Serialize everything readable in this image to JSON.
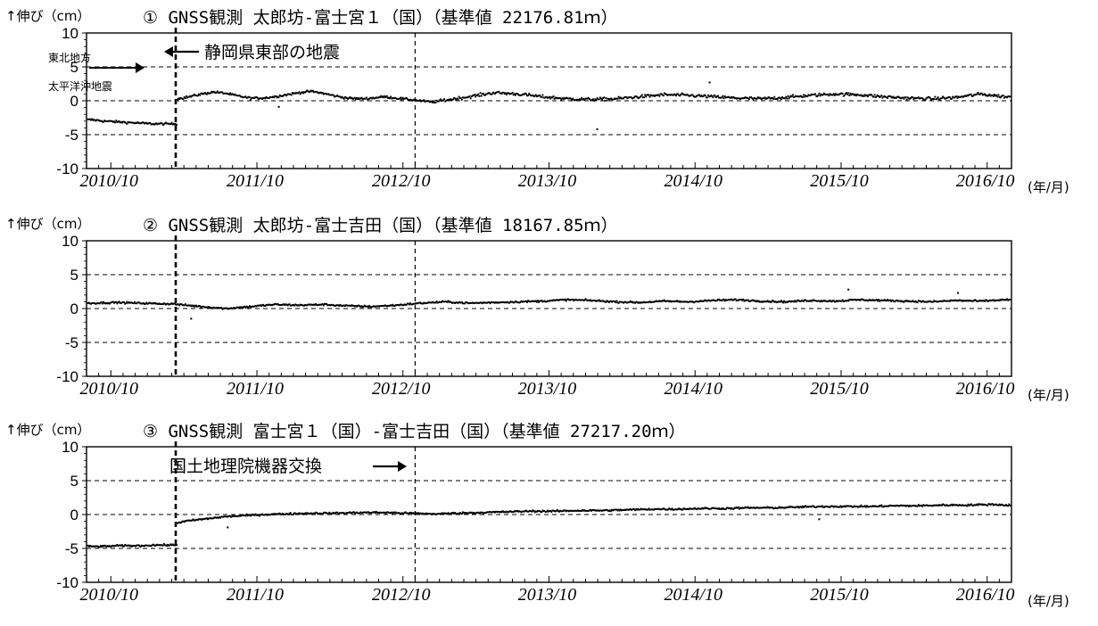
{
  "chart_data": [
    {
      "type": "scatter",
      "title": "① GNSS観測 太郎坊-富士宮１（国）（基準値 22176.81ｍ）",
      "ylabel": "↑伸び（cm）",
      "xunit": "(年/月)",
      "ylim": [
        -10,
        10
      ],
      "yticks": [
        "10",
        "5",
        "0",
        "-5",
        "-10"
      ],
      "xticks": [
        "2010/10",
        "2011/10",
        "2012/10",
        "2013/10",
        "2014/10",
        "2015/10",
        "2016/10"
      ],
      "grid": "dashed horizontal at ±5 cm and 0",
      "vlines": [
        "2011/03/11",
        "2012/11/01"
      ],
      "annotations": [
        "静岡県東部の地震",
        "東北地方",
        "太平洋沖地震"
      ],
      "series": [
        {
          "x": [
            "2010/08",
            "2010/09",
            "2010/10",
            "2010/11",
            "2010/12",
            "2011/01",
            "2011/02",
            "2011/03",
            "2011/03",
            "2011/04",
            "2011/05",
            "2011/06",
            "2011/07",
            "2011/08",
            "2011/09",
            "2011/10",
            "2011/11",
            "2011/12",
            "2012/01",
            "2012/02",
            "2012/03",
            "2012/04",
            "2012/05",
            "2012/06",
            "2012/07",
            "2012/08",
            "2012/09",
            "2012/10",
            "2012/11",
            "2012/12",
            "2013/01",
            "2013/03",
            "2013/05",
            "2013/07",
            "2013/09",
            "2013/11",
            "2014/01",
            "2014/03",
            "2014/05",
            "2014/07",
            "2014/09",
            "2014/11",
            "2015/01",
            "2015/03",
            "2015/05",
            "2015/07",
            "2015/09",
            "2015/11",
            "2016/01",
            "2016/03",
            "2016/05",
            "2016/07",
            "2016/09",
            "2016/11"
          ],
          "y": [
            -2.8,
            -3.0,
            -3.1,
            -3.2,
            -3.3,
            -3.4,
            -3.4,
            -3.4,
            0.3,
            0.6,
            1.0,
            1.3,
            1.1,
            0.7,
            0.4,
            0.4,
            0.6,
            0.9,
            1.2,
            1.4,
            1.1,
            0.7,
            0.4,
            0.3,
            0.4,
            0.6,
            0.4,
            0.2,
            0.0,
            -0.2,
            0.1,
            0.6,
            1.2,
            1.0,
            0.6,
            0.3,
            0.2,
            0.3,
            0.6,
            0.9,
            0.8,
            0.6,
            0.4,
            0.3,
            0.5,
            0.8,
            1.0,
            0.9,
            0.6,
            0.4,
            0.3,
            0.5,
            1.0,
            0.6
          ]
        }
      ]
    },
    {
      "type": "scatter",
      "title": "② GNSS観測 太郎坊-富士吉田（国）（基準値 18167.85ｍ）",
      "ylabel": "↑伸び（cm）",
      "xunit": "(年/月)",
      "ylim": [
        -10,
        10
      ],
      "yticks": [
        "10",
        "5",
        "0",
        "-5",
        "-10"
      ],
      "xticks": [
        "2010/10",
        "2011/10",
        "2012/10",
        "2013/10",
        "2014/10",
        "2015/10",
        "2016/10"
      ],
      "grid": "dashed horizontal at ±5 cm and 0",
      "vlines": [
        "2011/03/11",
        "2012/11/01"
      ],
      "series": [
        {
          "x": [
            "2010/08",
            "2010/10",
            "2010/12",
            "2011/02",
            "2011/03",
            "2011/05",
            "2011/07",
            "2011/09",
            "2011/11",
            "2012/01",
            "2012/03",
            "2012/05",
            "2012/07",
            "2012/09",
            "2012/11",
            "2013/01",
            "2013/03",
            "2013/05",
            "2013/07",
            "2013/09",
            "2013/11",
            "2014/01",
            "2014/03",
            "2014/05",
            "2014/07",
            "2014/09",
            "2014/11",
            "2015/01",
            "2015/03",
            "2015/05",
            "2015/07",
            "2015/09",
            "2015/11",
            "2016/01",
            "2016/03",
            "2016/05",
            "2016/07",
            "2016/09",
            "2016/11"
          ],
          "y": [
            0.8,
            0.9,
            0.8,
            0.7,
            0.6,
            0.3,
            0.0,
            0.3,
            0.6,
            0.5,
            0.6,
            0.4,
            0.3,
            0.5,
            0.8,
            1.0,
            0.8,
            0.9,
            1.0,
            1.1,
            1.3,
            1.2,
            1.0,
            0.9,
            1.1,
            1.0,
            1.2,
            1.3,
            1.1,
            1.0,
            1.2,
            1.1,
            1.3,
            1.2,
            1.1,
            1.0,
            1.2,
            1.1,
            1.3
          ]
        }
      ]
    },
    {
      "type": "scatter",
      "title": "③ GNSS観測 富士宮１（国）-富士吉田（国）（基準値 27217.20ｍ）",
      "ylabel": "↑伸び（cm）",
      "xunit": "(年/月)",
      "ylim": [
        -10,
        10
      ],
      "yticks": [
        "10",
        "5",
        "0",
        "-5",
        "-10"
      ],
      "xticks": [
        "2010/10",
        "2011/10",
        "2012/10",
        "2013/10",
        "2014/10",
        "2015/10",
        "2016/10"
      ],
      "grid": "dashed horizontal at ±5 cm and 0",
      "vlines": [
        "2011/03/11",
        "2012/11/01"
      ],
      "annotations": [
        "国土地理院機器交換"
      ],
      "series": [
        {
          "x": [
            "2010/08",
            "2010/09",
            "2010/10",
            "2010/11",
            "2010/12",
            "2011/01",
            "2011/02",
            "2011/03",
            "2011/03",
            "2011/04",
            "2011/05",
            "2011/06",
            "2011/07",
            "2011/08",
            "2011/10",
            "2011/12",
            "2012/02",
            "2012/04",
            "2012/06",
            "2012/08",
            "2012/10",
            "2012/12",
            "2013/02",
            "2013/04",
            "2013/06",
            "2013/08",
            "2013/10",
            "2013/12",
            "2014/02",
            "2014/04",
            "2014/06",
            "2014/08",
            "2014/10",
            "2014/12",
            "2015/02",
            "2015/04",
            "2015/06",
            "2015/08",
            "2015/10",
            "2015/12",
            "2016/02",
            "2016/04",
            "2016/06",
            "2016/08",
            "2016/10",
            "2016/11"
          ],
          "y": [
            -4.7,
            -4.7,
            -4.6,
            -4.6,
            -4.6,
            -4.5,
            -4.5,
            -4.5,
            -1.2,
            -0.9,
            -0.7,
            -0.5,
            -0.3,
            -0.2,
            0.0,
            0.1,
            0.2,
            0.2,
            0.3,
            0.3,
            0.2,
            0.1,
            0.2,
            0.3,
            0.4,
            0.5,
            0.5,
            0.6,
            0.6,
            0.7,
            0.8,
            0.8,
            0.9,
            0.9,
            1.0,
            1.0,
            1.1,
            1.2,
            1.2,
            1.2,
            1.3,
            1.3,
            1.4,
            1.4,
            1.5,
            1.4
          ]
        }
      ]
    }
  ]
}
